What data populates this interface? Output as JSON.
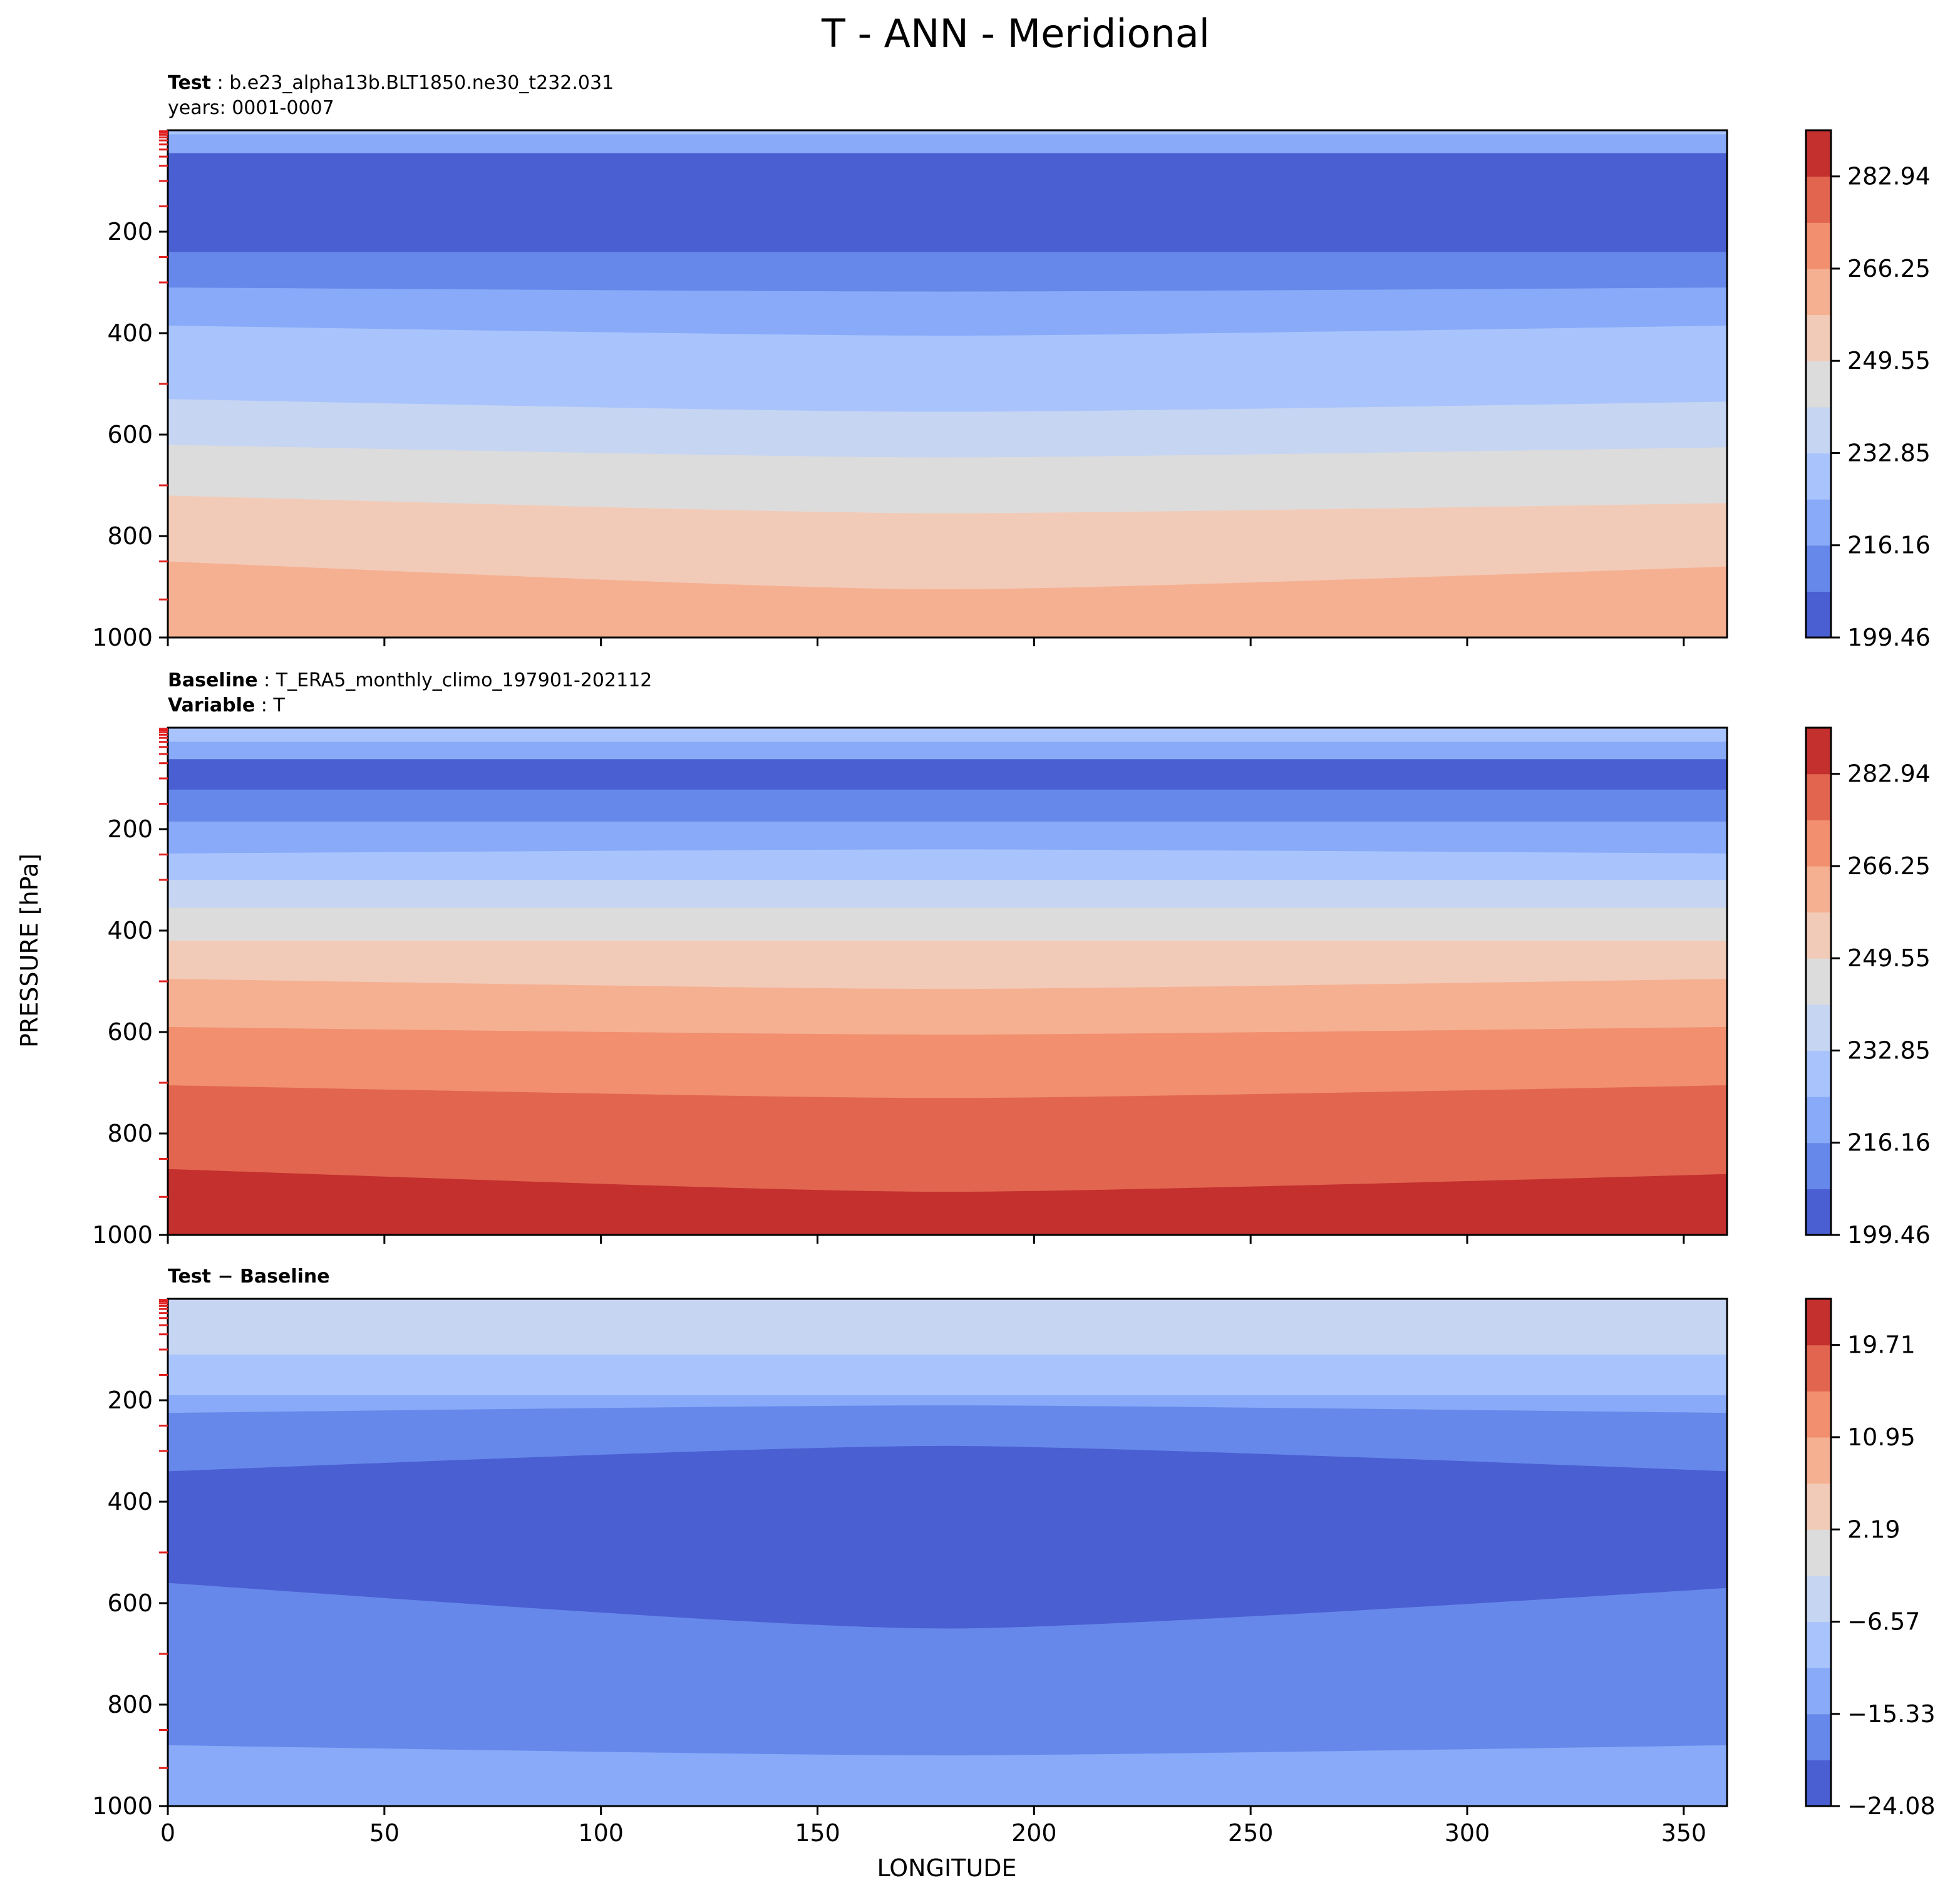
{
  "figure": {
    "title": "T - ANN - Meridional",
    "xlabel": "LONGITUDE",
    "ylabel": "PRESSURE [hPa]"
  },
  "colors": {
    "ramp": [
      "#4a5fd2",
      "#6688ea",
      "#88aaf8",
      "#a9c4fc",
      "#c6d5f1",
      "#dddcdc",
      "#f2cbb8",
      "#f5b092",
      "#f18f6f",
      "#e2654f",
      "#c3302e"
    ]
  },
  "chart_data": [
    {
      "type": "contourf",
      "panel": "test",
      "label_bold": "Test",
      "label_text": "b.e23_alpha13b.BLT1850.ne30_t232.031",
      "subtitle": "years: 0001-0007",
      "x_range": [
        0,
        360
      ],
      "y_range": [
        1000,
        0
      ],
      "x_ticks": [
        0,
        50,
        100,
        150,
        200,
        250,
        300,
        350
      ],
      "x_tick_labels": [
        "",
        "",
        "",
        "",
        "",
        "",
        "",
        ""
      ],
      "y_ticks": [
        200,
        400,
        600,
        800,
        1000
      ],
      "y_tick_labels": [
        "200",
        "400",
        "600",
        "800",
        "1000"
      ],
      "colorbar": {
        "min": 199.46,
        "max": 291.3,
        "ticks": [
          199.46,
          216.16,
          232.85,
          249.55,
          266.25,
          282.94
        ],
        "tick_labels": [
          "199.46",
          "216.16",
          "232.85",
          "249.55",
          "266.25",
          "282.94"
        ]
      },
      "levels_approx_hPa": [
        {
          "band": 3,
          "p": [
            0,
            0,
            0
          ]
        },
        {
          "band": 2,
          "p": [
            8,
            8,
            8
          ]
        },
        {
          "band": 0,
          "p": [
            45,
            45,
            45
          ]
        },
        {
          "band": 1,
          "p": [
            240,
            240,
            240
          ]
        },
        {
          "band": 2,
          "p": [
            310,
            318,
            310
          ]
        },
        {
          "band": 3,
          "p": [
            385,
            405,
            385
          ]
        },
        {
          "band": 4,
          "p": [
            530,
            555,
            535
          ]
        },
        {
          "band": 5,
          "p": [
            620,
            645,
            625
          ]
        },
        {
          "band": 6,
          "p": [
            720,
            755,
            735
          ]
        },
        {
          "band": 7,
          "p": [
            850,
            905,
            860
          ]
        },
        {
          "band": 8,
          "p": [
            1000,
            1000,
            1000
          ]
        }
      ]
    },
    {
      "type": "contourf",
      "panel": "baseline",
      "label_bold": "Baseline",
      "label_text": "T_ERA5_monthly_climo_197901-202112",
      "label2_bold": "Variable",
      "label2_text": "T",
      "x_range": [
        0,
        360
      ],
      "y_range": [
        1000,
        0
      ],
      "x_ticks": [
        0,
        50,
        100,
        150,
        200,
        250,
        300,
        350
      ],
      "x_tick_labels": [
        "",
        "",
        "",
        "",
        "",
        "",
        "",
        ""
      ],
      "y_ticks": [
        200,
        400,
        600,
        800,
        1000
      ],
      "y_tick_labels": [
        "200",
        "400",
        "600",
        "800",
        "1000"
      ],
      "colorbar": {
        "min": 199.46,
        "max": 291.3,
        "ticks": [
          199.46,
          216.16,
          232.85,
          249.55,
          266.25,
          282.94
        ],
        "tick_labels": [
          "199.46",
          "216.16",
          "232.85",
          "249.55",
          "266.25",
          "282.94"
        ]
      },
      "levels_approx_hPa": [
        {
          "band": 3,
          "p": [
            0,
            0,
            0
          ]
        },
        {
          "band": 2,
          "p": [
            28,
            28,
            28
          ]
        },
        {
          "band": 0,
          "p": [
            62,
            62,
            62
          ]
        },
        {
          "band": 1,
          "p": [
            122,
            122,
            122
          ]
        },
        {
          "band": 2,
          "p": [
            185,
            185,
            185
          ]
        },
        {
          "band": 3,
          "p": [
            248,
            240,
            248
          ]
        },
        {
          "band": 4,
          "p": [
            300,
            300,
            300
          ]
        },
        {
          "band": 5,
          "p": [
            355,
            355,
            355
          ]
        },
        {
          "band": 6,
          "p": [
            420,
            420,
            420
          ]
        },
        {
          "band": 7,
          "p": [
            495,
            515,
            495
          ]
        },
        {
          "band": 8,
          "p": [
            590,
            605,
            590
          ]
        },
        {
          "band": 9,
          "p": [
            705,
            730,
            705
          ]
        },
        {
          "band": 10,
          "p": [
            870,
            915,
            880
          ]
        }
      ]
    },
    {
      "type": "contourf",
      "panel": "difference",
      "label_bold": "Test − Baseline",
      "x_range": [
        0,
        360
      ],
      "y_range": [
        1000,
        0
      ],
      "x_ticks": [
        0,
        50,
        100,
        150,
        200,
        250,
        300,
        350
      ],
      "x_tick_labels": [
        "0",
        "50",
        "100",
        "150",
        "200",
        "250",
        "300",
        "350"
      ],
      "y_ticks": [
        200,
        400,
        600,
        800,
        1000
      ],
      "y_tick_labels": [
        "200",
        "400",
        "600",
        "800",
        "1000"
      ],
      "colorbar": {
        "min": -24.08,
        "max": 24.09,
        "ticks": [
          -24.08,
          -15.33,
          -6.57,
          2.19,
          10.95,
          19.71
        ],
        "tick_labels": [
          "−24.08",
          "−15.33",
          "−6.57",
          "2.19",
          "10.95",
          "19.71"
        ]
      },
      "levels_approx_hPa": [
        {
          "band": 4,
          "p": [
            0,
            0,
            0
          ]
        },
        {
          "band": 3,
          "p": [
            110,
            110,
            110
          ]
        },
        {
          "band": 2,
          "p": [
            190,
            190,
            190
          ]
        },
        {
          "band": 1,
          "p": [
            225,
            210,
            225
          ]
        },
        {
          "band": 0,
          "p": [
            340,
            290,
            340
          ]
        },
        {
          "band": 1,
          "p": [
            560,
            650,
            570
          ]
        },
        {
          "band": 2,
          "p": [
            880,
            900,
            880
          ]
        }
      ]
    }
  ]
}
